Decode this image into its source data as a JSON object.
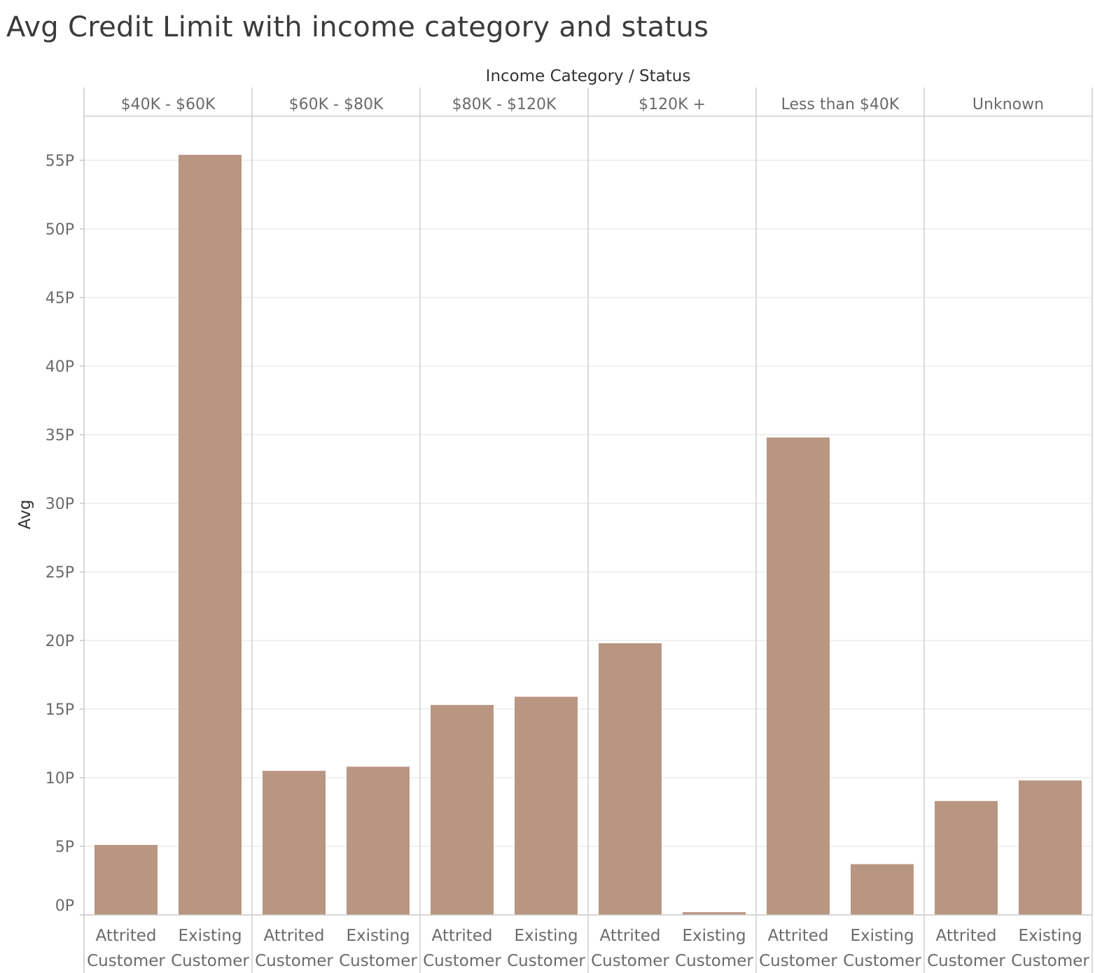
{
  "chart_data": {
    "type": "bar",
    "title": "Avg Credit Limit with income category and status",
    "column_header": "Income Category  /  Status",
    "ylabel": "Avg",
    "ylim": [
      0,
      58
    ],
    "y_ticks": [
      0,
      5,
      10,
      15,
      20,
      25,
      30,
      35,
      40,
      45,
      50,
      55
    ],
    "y_tick_labels": [
      "0P",
      "5P",
      "10P",
      "15P",
      "20P",
      "25P",
      "30P",
      "35P",
      "40P",
      "45P",
      "50P",
      "55P"
    ],
    "grid": true,
    "bar_color": "#b99682",
    "groups": [
      {
        "name": "$40K - $60K",
        "bars": [
          {
            "status": [
              "Attrited",
              "Customer"
            ],
            "value": 5.1
          },
          {
            "status": [
              "Existing",
              "Customer"
            ],
            "value": 55.4
          }
        ]
      },
      {
        "name": "$60K - $80K",
        "bars": [
          {
            "status": [
              "Attrited",
              "Customer"
            ],
            "value": 10.5
          },
          {
            "status": [
              "Existing",
              "Customer"
            ],
            "value": 10.8
          }
        ]
      },
      {
        "name": "$80K - $120K",
        "bars": [
          {
            "status": [
              "Attrited",
              "Customer"
            ],
            "value": 15.3
          },
          {
            "status": [
              "Existing",
              "Customer"
            ],
            "value": 15.9
          }
        ]
      },
      {
        "name": "$120K +",
        "bars": [
          {
            "status": [
              "Attrited",
              "Customer"
            ],
            "value": 19.8
          },
          {
            "status": [
              "Existing",
              "Customer"
            ],
            "value": 0.2
          }
        ]
      },
      {
        "name": "Less than $40K",
        "bars": [
          {
            "status": [
              "Attrited",
              "Customer"
            ],
            "value": 34.8
          },
          {
            "status": [
              "Existing",
              "Customer"
            ],
            "value": 3.7
          }
        ]
      },
      {
        "name": "Unknown",
        "bars": [
          {
            "status": [
              "Attrited",
              "Customer"
            ],
            "value": 8.3
          },
          {
            "status": [
              "Existing",
              "Customer"
            ],
            "value": 9.8
          }
        ]
      }
    ]
  }
}
